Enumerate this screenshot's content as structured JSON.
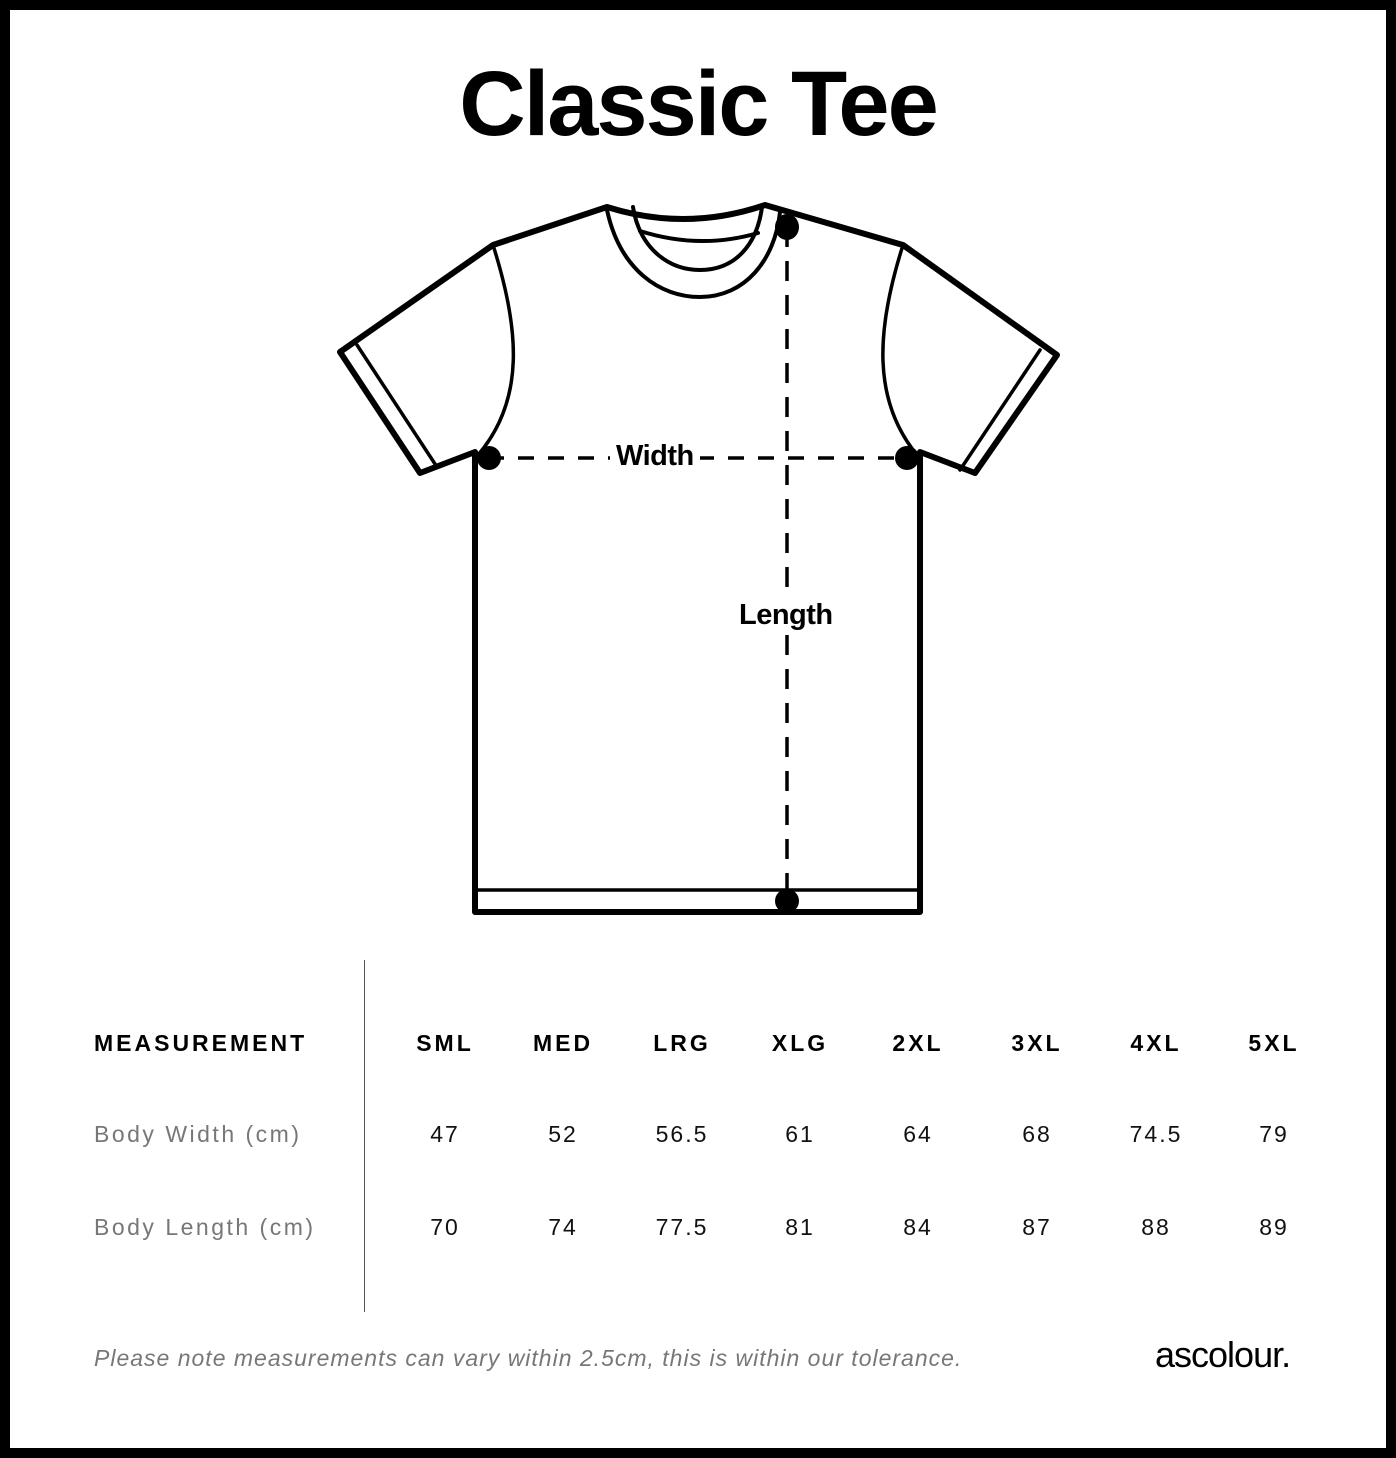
{
  "title": "Classic Tee",
  "diagram": {
    "width_label": "Width",
    "length_label": "Length"
  },
  "table": {
    "header_label": "MEASUREMENT",
    "sizes": [
      "SML",
      "MED",
      "LRG",
      "XLG",
      "2XL",
      "3XL",
      "4XL",
      "5XL"
    ],
    "rows": [
      {
        "label": "Body Width (cm)",
        "values": [
          "47",
          "52",
          "56.5",
          "61",
          "64",
          "68",
          "74.5",
          "79"
        ]
      },
      {
        "label": "Body Length (cm)",
        "values": [
          "70",
          "74",
          "77.5",
          "81",
          "84",
          "87",
          "88",
          "89"
        ]
      }
    ]
  },
  "footer": {
    "note": "Please note measurements can vary within 2.5cm, this is within our tolerance.",
    "logo": "ascolour."
  }
}
